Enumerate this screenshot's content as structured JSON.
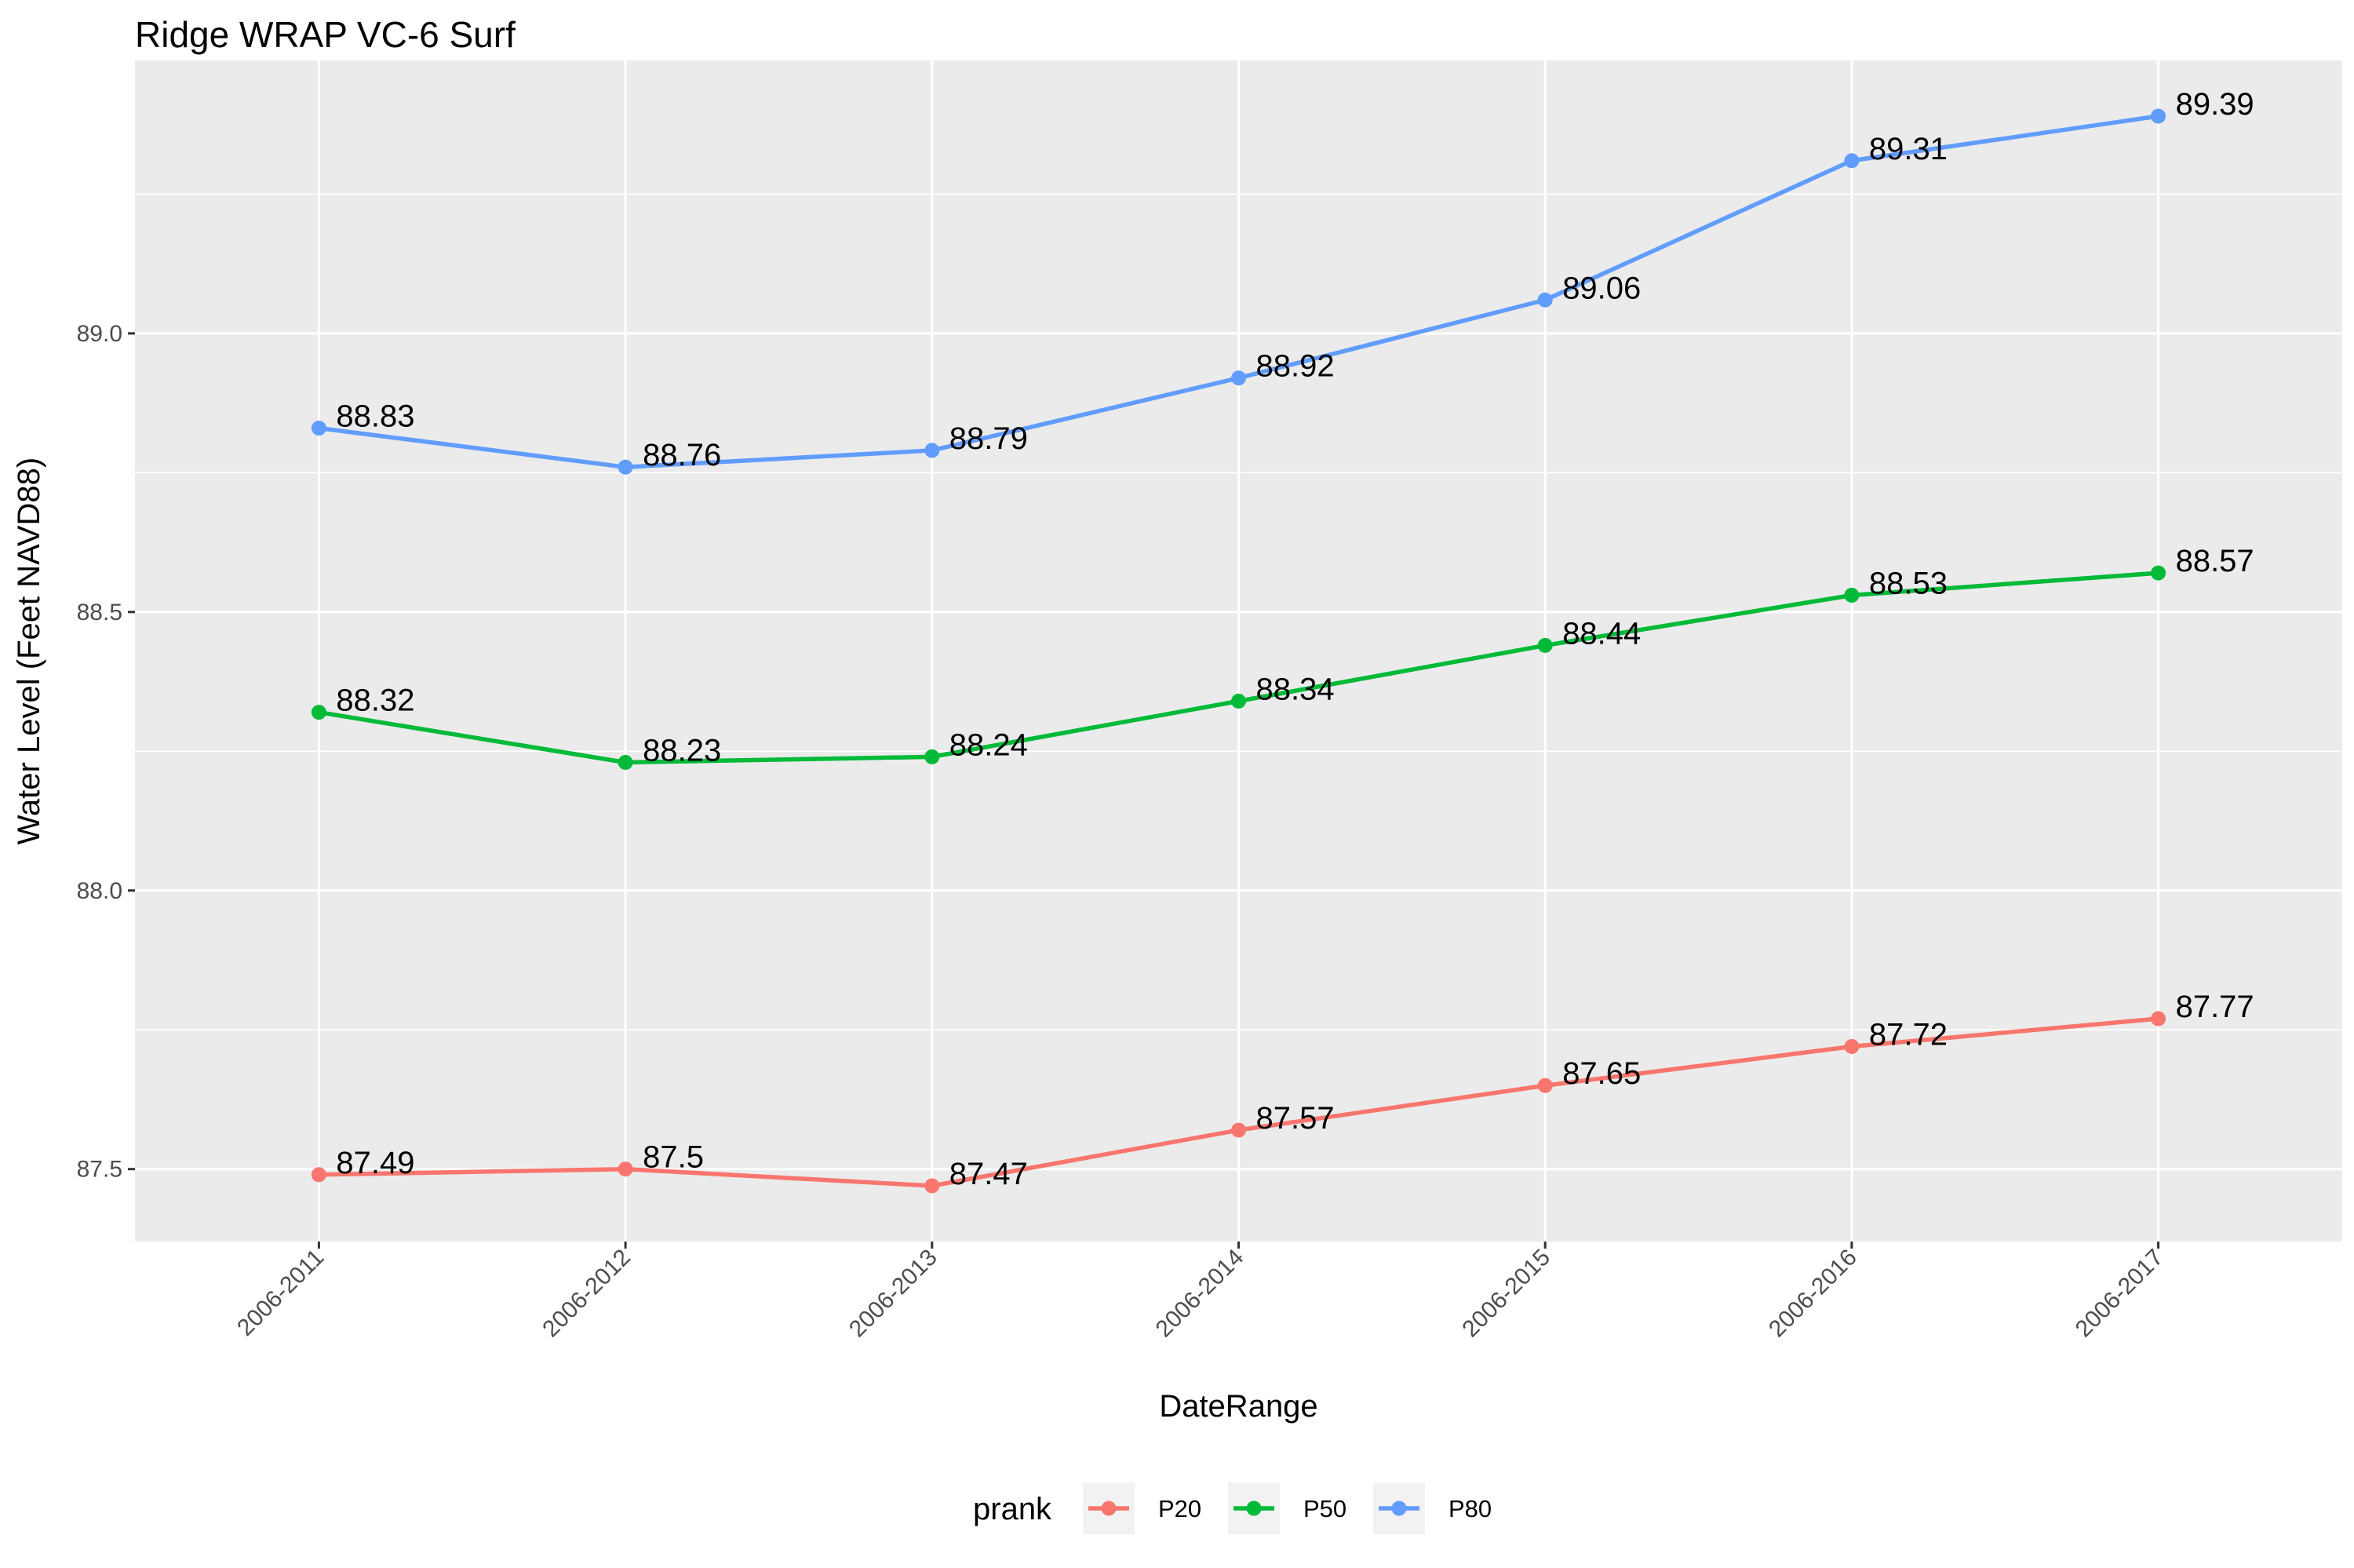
{
  "chart_data": {
    "type": "line",
    "title": "Ridge WRAP VC-6 Surf",
    "xlabel": "DateRange",
    "ylabel": "Water Level (Feet NAVD88)",
    "categories": [
      "2006-2011",
      "2006-2012",
      "2006-2013",
      "2006-2014",
      "2006-2015",
      "2006-2016",
      "2006-2017"
    ],
    "ylim": [
      87.37,
      89.49
    ],
    "yticks": [
      87.5,
      88.0,
      88.5,
      89.0
    ],
    "ytick_labels": [
      "87.5",
      "88.0",
      "88.5",
      "89.0"
    ],
    "grid": true,
    "legend": {
      "title": "prank",
      "position": "bottom"
    },
    "series": [
      {
        "name": "P20",
        "color": "#F8766D",
        "values": [
          87.49,
          87.5,
          87.47,
          87.57,
          87.65,
          87.72,
          87.77
        ],
        "labels": [
          "87.49",
          "87.5",
          "87.47",
          "87.57",
          "87.65",
          "87.72",
          "87.77"
        ]
      },
      {
        "name": "P50",
        "color": "#00BA38",
        "values": [
          88.32,
          88.23,
          88.24,
          88.34,
          88.44,
          88.53,
          88.57
        ],
        "labels": [
          "88.32",
          "88.23",
          "88.24",
          "88.34",
          "88.44",
          "88.53",
          "88.57"
        ]
      },
      {
        "name": "P80",
        "color": "#619CFF",
        "values": [
          88.83,
          88.76,
          88.79,
          88.92,
          89.06,
          89.31,
          89.39
        ],
        "labels": [
          "88.83",
          "88.76",
          "88.79",
          "88.92",
          "89.06",
          "89.31",
          "89.39"
        ]
      }
    ],
    "panel_color": "#EBEBEB",
    "grid_color": "#FFFFFF"
  }
}
